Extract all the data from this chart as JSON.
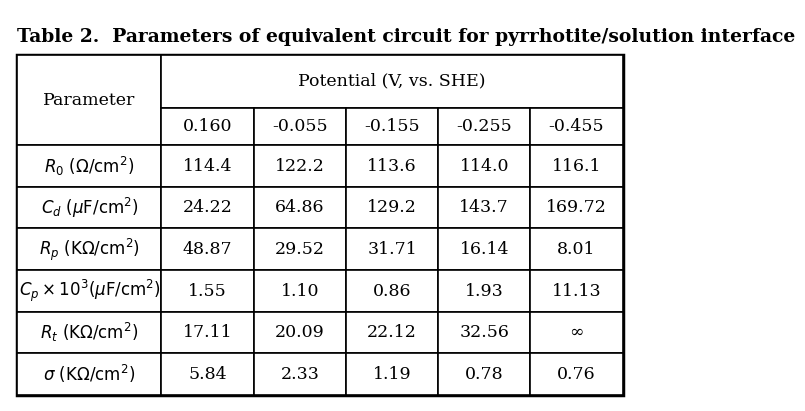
{
  "title": "Table 2.  Parameters of equivalent circuit for pyrrhotite/solution interface",
  "col_header_top": "Potential (V, vs. SHE)",
  "col_header_bottom": [
    "0.160",
    "-0.055",
    "-0.155",
    "-0.255",
    "-0.455"
  ],
  "data": [
    [
      "114.4",
      "122.2",
      "113.6",
      "114.0",
      "116.1"
    ],
    [
      "24.22",
      "64.86",
      "129.2",
      "143.7",
      "169.72"
    ],
    [
      "48.87",
      "29.52",
      "31.71",
      "16.14",
      "8.01"
    ],
    [
      "1.55",
      "1.10",
      "0.86",
      "1.93",
      "11.13"
    ],
    [
      "17.11",
      "20.09",
      "22.12",
      "32.56",
      "∞"
    ],
    [
      "5.84",
      "2.33",
      "1.19",
      "0.78",
      "0.76"
    ]
  ],
  "row_labels_math": [
    "$R_0\\ (\\Omega/\\mathrm{cm}^2)$",
    "$C_d\\ (\\mu\\mathrm{F}/\\mathrm{cm}^2)$",
    "$R_p\\ (\\mathrm{K}\\Omega/\\mathrm{cm}^2)$",
    "$C_p \\times 10^3(\\mu\\mathrm{F}/\\mathrm{cm}^2)$",
    "$R_t\\ (\\mathrm{K}\\Omega/\\mathrm{cm}^2)$",
    "$\\sigma\\ (\\mathrm{K}\\Omega/\\mathrm{cm}^2)$"
  ],
  "bg_color": "#ffffff",
  "text_color": "#000000",
  "title_fontsize": 13.5,
  "cell_fontsize": 12.5,
  "header_fontsize": 12.5
}
